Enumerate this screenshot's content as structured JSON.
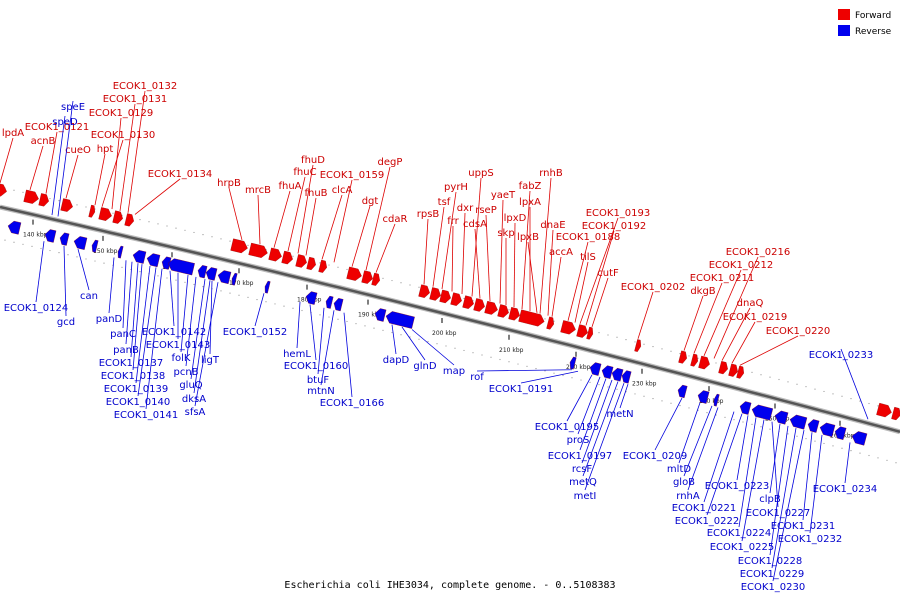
{
  "title": "Escherichia coli IHE3034, complete genome. - 0..5108383",
  "legend": [
    {
      "label": "Forward",
      "color": "#ee0000"
    },
    {
      "label": "Reverse",
      "color": "#0000ee"
    }
  ],
  "ticks": [
    "140 kbp",
    "150 kbp",
    "160 kbp",
    "170 kbp",
    "180 kbp",
    "190 kbp",
    "200 kbp",
    "210 kbp",
    "220 kbp",
    "230 kbp",
    "240 kbp",
    "250 kbp",
    "260 kbp"
  ],
  "forward_genes": [
    "lpdA",
    "acnB",
    "ECOK1_0121",
    "cueO",
    "hpt",
    "ECOK1_0130",
    "ECOK1_0129",
    "ECOK1_0131",
    "ECOK1_0132",
    "ECOK1_0134",
    "hrpB",
    "mrcB",
    "fhuA",
    "fhuC",
    "fhuD",
    "fhuB",
    "clcA",
    "ECOK1_0159",
    "dgt",
    "degP",
    "cdaR",
    "rpsB",
    "tsf",
    "pyrH",
    "frr",
    "dxr",
    "uppS",
    "cdsA",
    "rseP",
    "yaeT",
    "skp",
    "lpxD",
    "fabZ",
    "lpxA",
    "lpxB",
    "rnhB",
    "dnaE",
    "accA",
    "ECOK1_0188",
    "tilS",
    "ECOK1_0193",
    "ECOK1_0192",
    "cutF",
    "ECOK1_0202",
    "dkgB",
    "ECOK1_0211",
    "ECOK1_0212",
    "ECOK1_0216",
    "dnaQ",
    "ECOK1_0219",
    "ECOK1_0220"
  ],
  "reverse_genes": [
    "speE",
    "speD",
    "ECOK1_0124",
    "gcd",
    "can",
    "panD",
    "panC",
    "panB",
    "ECOK1_0137",
    "ECOK1_0138",
    "ECOK1_0139",
    "ECOK1_0140",
    "ECOK1_0141",
    "ECOK1_0142",
    "ECOK1_0143",
    "folK",
    "pcnB",
    "ligT",
    "gluQ",
    "dksA",
    "sfsA",
    "ECOK1_0152",
    "hemL",
    "ECOK1_0160",
    "btuF",
    "mtnN",
    "ECOK1_0166",
    "dapD",
    "glnD",
    "map",
    "rof",
    "ECOK1_0191",
    "ECOK1_0195",
    "proS",
    "ECOK1_0197",
    "rcsF",
    "metQ",
    "metI",
    "metN",
    "ECOK1_0209",
    "mltD",
    "gloB",
    "rnhA",
    "ECOK1_0221",
    "ECOK1_0222",
    "ECOK1_0223",
    "ECOK1_0224",
    "ECOK1_0225",
    "ECOK1_0227",
    "clpB",
    "ECOK1_0228",
    "ECOK1_0229",
    "ECOK1_0230",
    "ECOK1_0231",
    "ECOK1_0232",
    "ECOK1_0233",
    "ECOK1_0234"
  ]
}
